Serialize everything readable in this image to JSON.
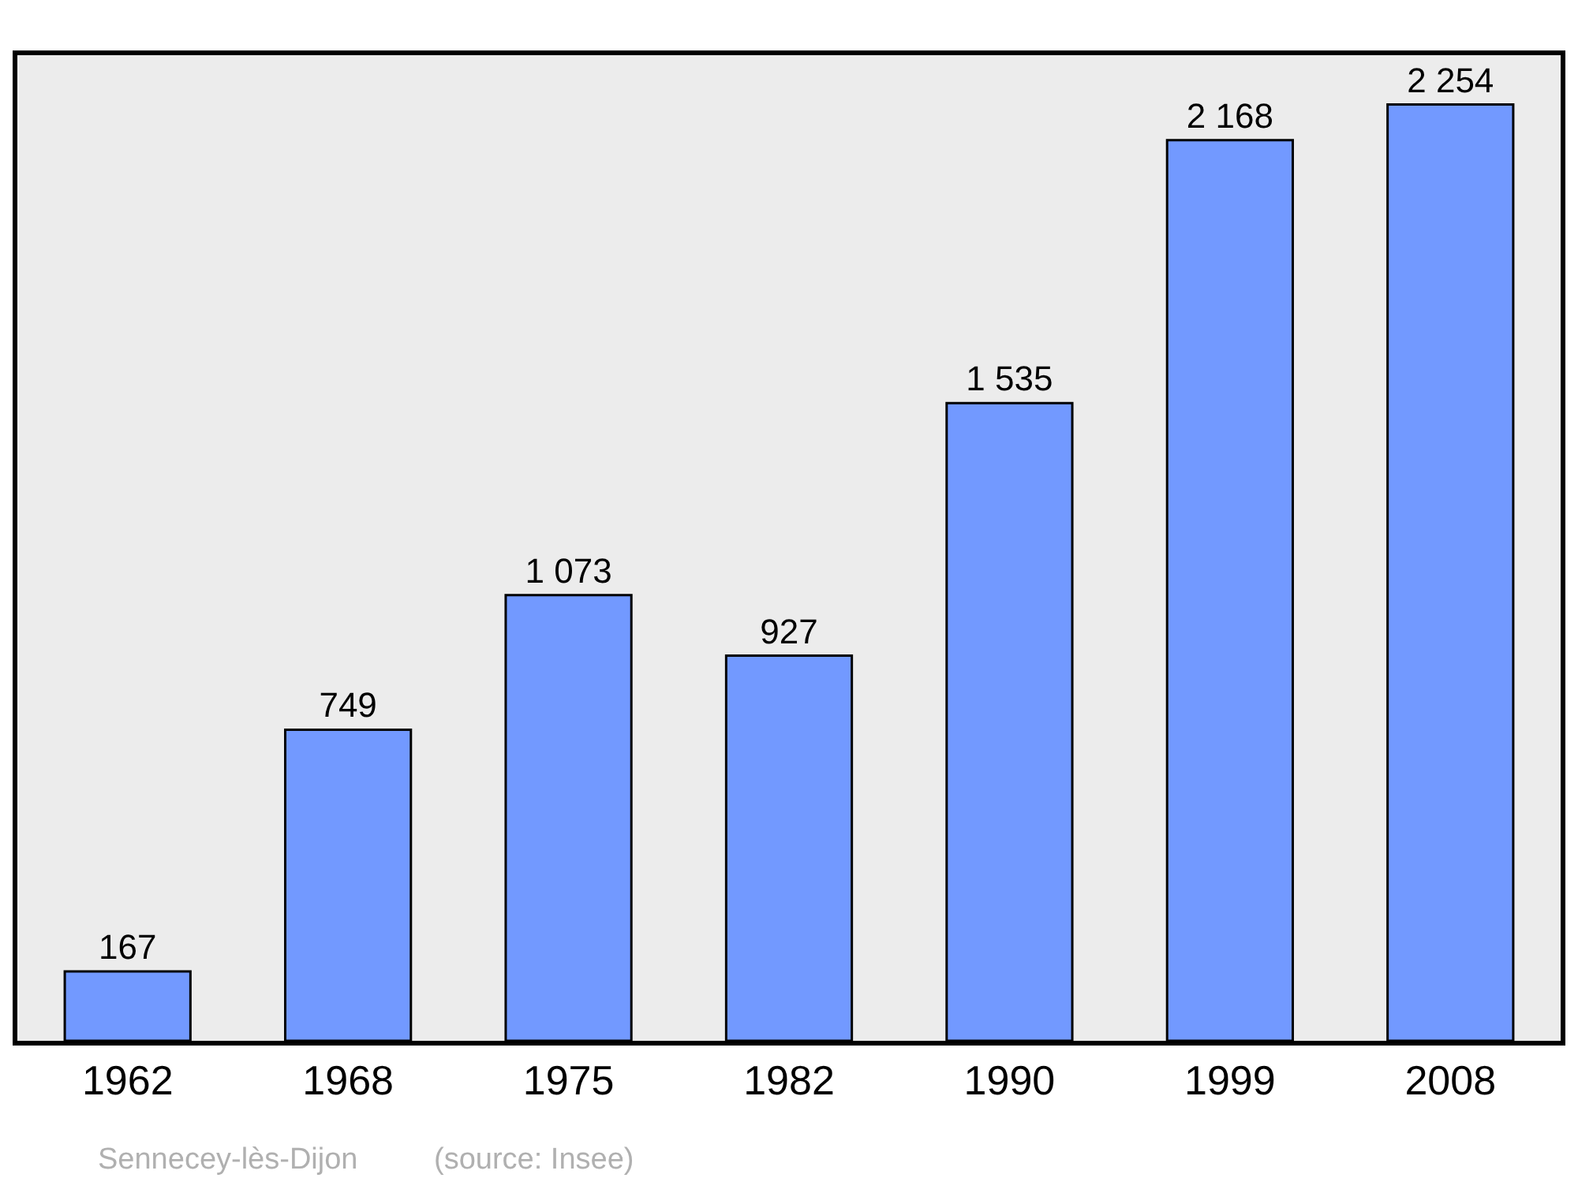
{
  "chart_data": {
    "type": "bar",
    "categories": [
      "1962",
      "1968",
      "1975",
      "1982",
      "1990",
      "1999",
      "2008"
    ],
    "values": [
      167,
      749,
      1073,
      927,
      1535,
      2168,
      2254
    ],
    "value_labels": [
      "167",
      "749",
      "1 073",
      "927",
      "1 535",
      "2 168",
      "2 254"
    ],
    "color": "#7299ff",
    "grid": false,
    "legend": false,
    "annotations": [
      "Sennecey-lès-Dijon",
      "(source: Insee)"
    ]
  }
}
